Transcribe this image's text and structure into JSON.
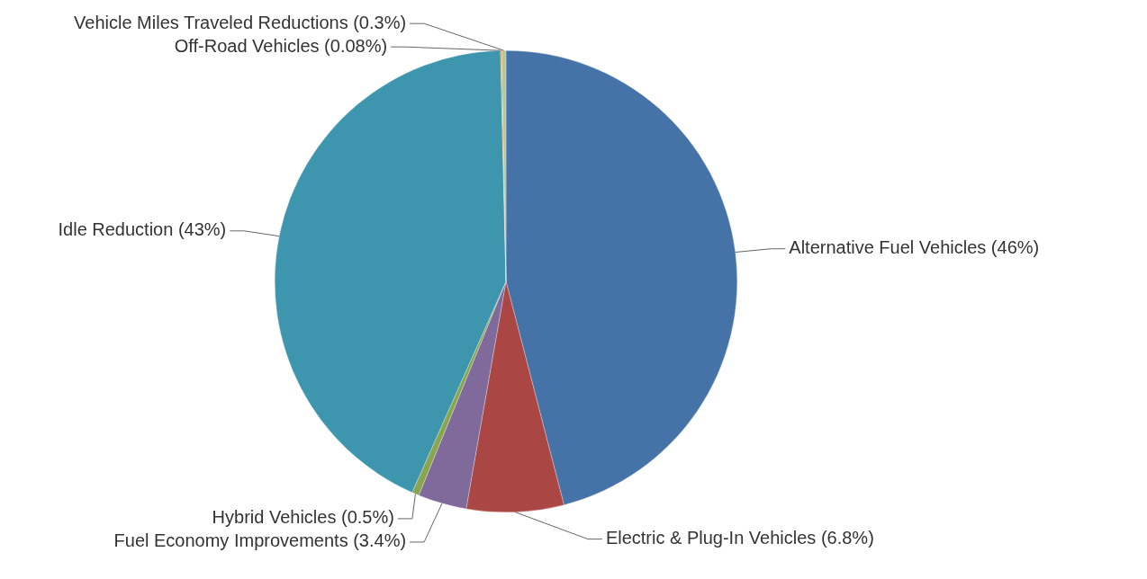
{
  "chart_data": {
    "type": "pie",
    "categories": [
      "Alternative Fuel Vehicles (46%)",
      "Electric & Plug-In Vehicles (6.8%)",
      "Fuel Economy Improvements (3.4%)",
      "Hybrid Vehicles (0.5%)",
      "Idle Reduction (43%)",
      "Off-Road Vehicles (0.08%)",
      "Vehicle Miles Traveled Reductions (0.3%)"
    ],
    "values": [
      46,
      6.8,
      3.4,
      0.5,
      43,
      0.08,
      0.3
    ],
    "colors": [
      "#4572a7",
      "#aa4643",
      "#80699b",
      "#89a54e",
      "#3d96ae",
      "#db843d",
      "#b5ca92"
    ],
    "legend": false
  }
}
